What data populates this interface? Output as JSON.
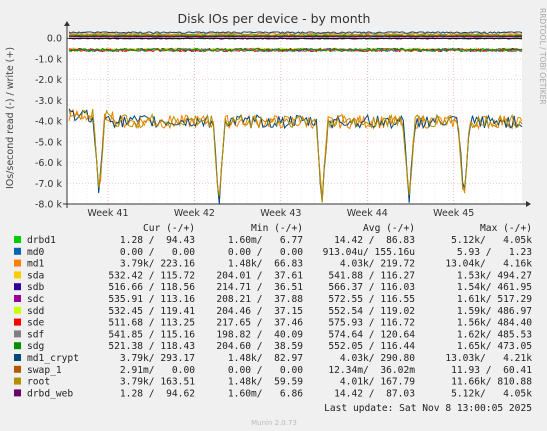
{
  "chart_data": {
    "type": "line",
    "title": "Disk IOs per device - by month",
    "ylabel": "IOs/second read (-) / write (+)",
    "side_label": "RRDTOOL / TOBI OETIKER",
    "footer": "Munin 2.0.73",
    "last_update": "Last update: Sat Nov  8 13:00:05 2025",
    "ylim": [
      -8000,
      300
    ],
    "y_ticks": [
      {
        "value": 0,
        "label": "0.0"
      },
      {
        "value": -1000,
        "label": "-1.0 k"
      },
      {
        "value": -2000,
        "label": "-2.0 k"
      },
      {
        "value": -3000,
        "label": "-3.0 k"
      },
      {
        "value": -4000,
        "label": "-4.0 k"
      },
      {
        "value": -5000,
        "label": "-5.0 k"
      },
      {
        "value": -6000,
        "label": "-6.0 k"
      },
      {
        "value": -7000,
        "label": "-7.0 k"
      },
      {
        "value": -8000,
        "label": "-8.0 k"
      }
    ],
    "x_ticks": [
      "Week 41",
      "Week 42",
      "Week 43",
      "Week 44",
      "Week 45"
    ],
    "x_tick_positions": [
      0.09,
      0.28,
      0.47,
      0.66,
      0.85
    ],
    "grid": true,
    "legend_headers": [
      "Cur (-/+)",
      "Min (-/+)",
      "Avg (-/+)",
      "Max (-/+)"
    ],
    "series": [
      {
        "name": "drbd1",
        "color": "#00cc00",
        "cur": "1.28 /  94.43",
        "min": "1.60m/   6.77",
        "avg": "14.42 /  86.83",
        "max": "5.12k/   4.05k",
        "read_level": -14,
        "write_level": 87
      },
      {
        "name": "md0",
        "color": "#0066b3",
        "cur": "0.00 /   0.00",
        "min": "0.00 /   0.00",
        "avg": "913.04u/ 155.16u",
        "max": "5.93 /   1.23",
        "read_level": 0,
        "write_level": 0
      },
      {
        "name": "md1",
        "color": "#ff8000",
        "cur": "3.79k/ 223.16",
        "min": "1.48k/  66.83",
        "avg": "4.03k/ 219.72",
        "max": "13.04k/   4.16k",
        "read_level": -4030,
        "write_level": 220
      },
      {
        "name": "sda",
        "color": "#ffcc00",
        "cur": "532.42 / 115.72",
        "min": "204.01 /  37.61",
        "avg": "541.88 / 116.27",
        "max": "1.53k/ 494.27",
        "read_level": -542,
        "write_level": 116
      },
      {
        "name": "sdb",
        "color": "#330099",
        "cur": "516.66 / 118.56",
        "min": "214.71 /  36.51",
        "avg": "566.37 / 116.03",
        "max": "1.54k/ 461.95",
        "read_level": -566,
        "write_level": 116
      },
      {
        "name": "sdc",
        "color": "#990099",
        "cur": "535.91 / 113.16",
        "min": "208.21 /  37.88",
        "avg": "572.55 / 116.55",
        "max": "1.61k/ 517.29",
        "read_level": -573,
        "write_level": 117
      },
      {
        "name": "sdd",
        "color": "#ccff00",
        "cur": "532.45 / 119.41",
        "min": "204.46 /  37.15",
        "avg": "552.54 / 119.02",
        "max": "1.59k/ 486.97",
        "read_level": -553,
        "write_level": 119
      },
      {
        "name": "sde",
        "color": "#ff0000",
        "cur": "511.68 / 113.25",
        "min": "217.65 /  37.46",
        "avg": "575.93 / 116.72",
        "max": "1.56k/ 484.40",
        "read_level": -576,
        "write_level": 117
      },
      {
        "name": "sdf",
        "color": "#808080",
        "cur": "541.85 / 115.16",
        "min": "198.82 /  40.09",
        "avg": "574.64 / 120.64",
        "max": "1.62k/ 485.53",
        "read_level": -575,
        "write_level": 121
      },
      {
        "name": "sdg",
        "color": "#008f00",
        "cur": "521.38 / 118.43",
        "min": "204.60 /  38.59",
        "avg": "552.05 / 116.44",
        "max": "1.65k/ 473.05",
        "read_level": -552,
        "write_level": 116
      },
      {
        "name": "md1_crypt",
        "color": "#00487d",
        "cur": "3.79k/ 293.17",
        "min": "1.48k/  82.97",
        "avg": "4.03k/ 290.80",
        "max": "13.03k/   4.21k",
        "read_level": -4030,
        "write_level": 291
      },
      {
        "name": "swap_1",
        "color": "#b35a00",
        "cur": "2.91m/   0.00",
        "min": "0.00 /   0.00",
        "avg": "12.34m/  36.02m",
        "max": "11.93 /  60.41",
        "read_level": 0,
        "write_level": 0
      },
      {
        "name": "root",
        "color": "#b38f00",
        "cur": "3.79k/ 163.51",
        "min": "1.48k/  59.59",
        "avg": "4.01k/ 167.79",
        "max": "11.66k/ 810.88",
        "read_level": -4010,
        "write_level": 168
      },
      {
        "name": "drbd_web",
        "color": "#6b006b",
        "cur": "1.28 /  94.62",
        "min": "1.60m/   6.86",
        "avg": "14.42 /  87.03",
        "max": "5.12k/   4.05k",
        "read_level": -14,
        "write_level": 87
      }
    ]
  }
}
